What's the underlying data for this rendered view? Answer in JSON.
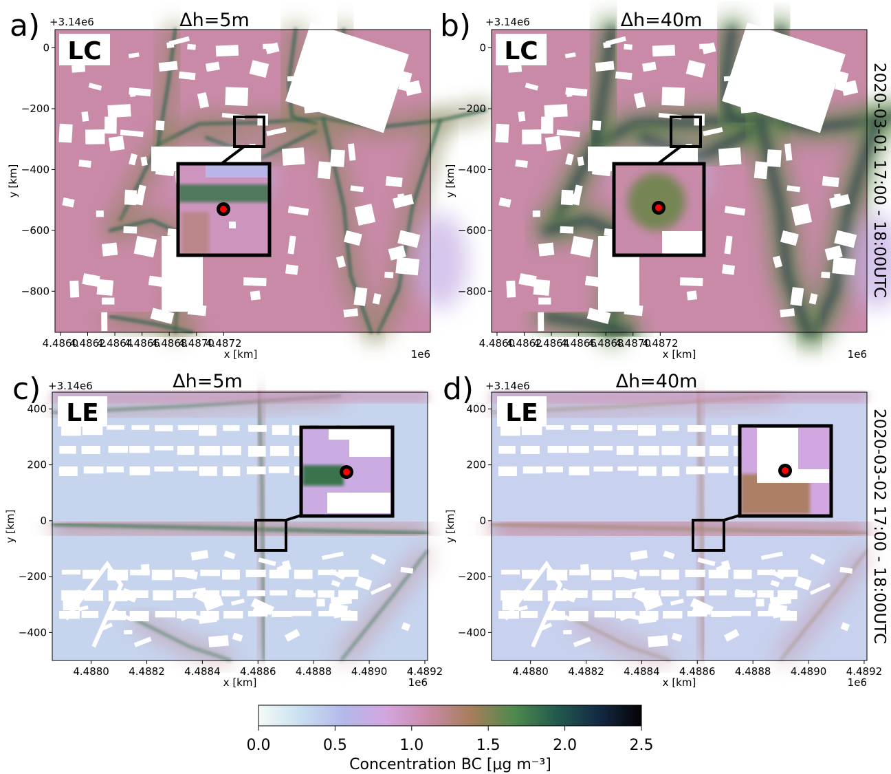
{
  "figure": {
    "colorbar": {
      "label": "Concentration BC [μg m⁻³]",
      "min": 0.0,
      "max": 2.5,
      "ticks": [
        "0.0",
        "0.5",
        "1.0",
        "1.5",
        "2.0",
        "2.5"
      ],
      "colors": [
        "#f2fbf7",
        "#c9dff0",
        "#b3b8ea",
        "#d4a5df",
        "#c98aa8",
        "#a77d5b",
        "#4f8a4c",
        "#235a4e",
        "#132a44",
        "#050205"
      ]
    },
    "row_labels": [
      "2020-03-01 17:00 - 18:00UTC",
      "2020-03-02 17:00 - 18:00UTC"
    ],
    "building_color": "#ffffff",
    "inset_border_color": "#000000",
    "site_marker_colors": {
      "ring": "#000000",
      "dot": "#ff0000"
    }
  },
  "chart_data": [
    {
      "type": "heatmap",
      "panel_label": "a)",
      "title": "Δh=5m",
      "site_label": "LC",
      "xlabel": "x [km]",
      "ylabel": "y [km]",
      "x_offset_label": "1e6",
      "y_offset_label": "+3.14e6",
      "xlim": [
        4.48596,
        4.48872
      ],
      "ylim": [
        -935,
        60
      ],
      "x_ticks": [
        "4.4860",
        "4.4862",
        "4.4864",
        "4.4866",
        "4.4868",
        "4.4870",
        "4.4872"
      ],
      "y_ticks": [
        "0",
        "−200",
        "−400",
        "−600",
        "−800"
      ],
      "base_concentration": 1.0,
      "max_concentration": 2.5
    },
    {
      "type": "heatmap",
      "panel_label": "b)",
      "title": "Δh=40m",
      "site_label": "LC",
      "xlabel": "x [km]",
      "ylabel": "y [km]",
      "x_offset_label": "1e6",
      "y_offset_label": "+3.14e6",
      "xlim": [
        4.48596,
        4.48872
      ],
      "ylim": [
        -935,
        60
      ],
      "x_ticks": [
        "4.4860",
        "4.4862",
        "4.4864",
        "4.4866",
        "4.4868",
        "4.4870",
        "4.4872"
      ],
      "y_ticks": [
        "0",
        "−200",
        "−400",
        "−600",
        "−800"
      ],
      "base_concentration": 1.0,
      "max_concentration": 2.3
    },
    {
      "type": "heatmap",
      "panel_label": "c)",
      "title": "Δh=5m",
      "site_label": "LE",
      "xlabel": "x [km]",
      "ylabel": "y [km]",
      "x_offset_label": "1e6",
      "y_offset_label": "+3.14e6",
      "xlim": [
        4.48786,
        4.48921
      ],
      "ylim": [
        -500,
        460
      ],
      "x_ticks": [
        "4.4880",
        "4.4882",
        "4.4884",
        "4.4886",
        "4.4888",
        "4.4890",
        "4.4892"
      ],
      "y_ticks": [
        "400",
        "200",
        "0",
        "−200",
        "−400"
      ],
      "base_concentration": 0.5,
      "max_concentration": 2.0
    },
    {
      "type": "heatmap",
      "panel_label": "d)",
      "title": "Δh=40m",
      "site_label": "LE",
      "xlabel": "x [km]",
      "ylabel": "y [km]",
      "x_offset_label": "1e6",
      "y_offset_label": "+3.14e6",
      "xlim": [
        4.48786,
        4.48921
      ],
      "ylim": [
        -500,
        460
      ],
      "x_ticks": [
        "4.4880",
        "4.4882",
        "4.4884",
        "4.4886",
        "4.4888",
        "4.4890",
        "4.4892"
      ],
      "y_ticks": [
        "400",
        "200",
        "0",
        "−200",
        "−400"
      ],
      "base_concentration": 0.6,
      "max_concentration": 1.6
    }
  ]
}
